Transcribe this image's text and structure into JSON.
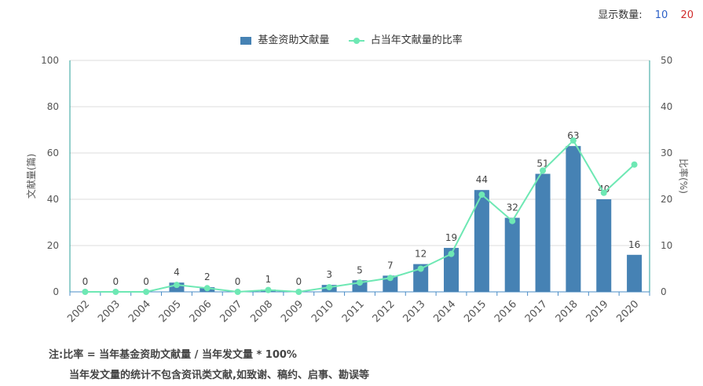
{
  "controls": {
    "label": "显示数量:",
    "options": [
      "10",
      "20"
    ]
  },
  "chart_data": {
    "type": "bar+line",
    "categories": [
      "2002",
      "2003",
      "2004",
      "2005",
      "2006",
      "2007",
      "2008",
      "2009",
      "2010",
      "2011",
      "2012",
      "2013",
      "2014",
      "2015",
      "2016",
      "2017",
      "2018",
      "2019",
      "2020"
    ],
    "series": [
      {
        "name": "基金资助文献量",
        "type": "bar",
        "axis": "left",
        "color": "#4682b4",
        "values": [
          0,
          0,
          0,
          4,
          2,
          0,
          1,
          0,
          3,
          5,
          7,
          12,
          19,
          44,
          32,
          51,
          63,
          40,
          16
        ]
      },
      {
        "name": "占当年文献量的比率",
        "type": "line",
        "axis": "right",
        "color": "#6ee8b4",
        "values": [
          0,
          0,
          0,
          1.5,
          0.8,
          0,
          0.4,
          0,
          1,
          2,
          3,
          5,
          8.2,
          21,
          15.3,
          26.2,
          32.7,
          21.4,
          27.5
        ]
      }
    ],
    "ylabel_left": "文献量(篇)",
    "ylabel_right": "比率(%)",
    "ylim_left": [
      0,
      100
    ],
    "ylim_right": [
      0,
      50
    ],
    "yticks_left": [
      "0",
      "20",
      "40",
      "60",
      "80",
      "100"
    ],
    "yticks_right": [
      "0",
      "10",
      "20",
      "30",
      "40",
      "50"
    ],
    "grid": true,
    "legend": "top-center"
  },
  "notes": {
    "line1": "注:比率 = 当年基金资助文献量 / 当年发文量 * 100%",
    "line2": "当年发文量的统计不包含资讯类文献,如致谢、稿约、启事、勘误等"
  }
}
